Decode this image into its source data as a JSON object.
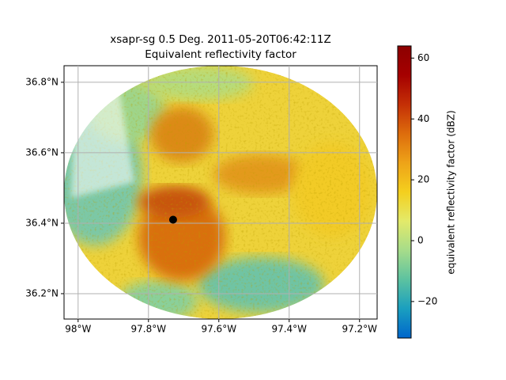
{
  "chart_data": {
    "type": "radar_ppi",
    "title": "xsapr-sg 0.5 Deg. 2011-05-20T06:42:11Z",
    "subtitle": "Equivalent reflectivity factor",
    "xlim": [
      -98.04,
      -97.15
    ],
    "ylim": [
      36.128,
      36.847
    ],
    "xticks": [
      {
        "value": -98,
        "label": "98°W"
      },
      {
        "value": -97.8,
        "label": "97.8°W"
      },
      {
        "value": -97.6,
        "label": "97.6°W"
      },
      {
        "value": -97.4,
        "label": "97.4°W"
      },
      {
        "value": -97.2,
        "label": "97.2°W"
      }
    ],
    "yticks": [
      {
        "value": 36.2,
        "label": "36.2°N"
      },
      {
        "value": 36.4,
        "label": "36.4°N"
      },
      {
        "value": 36.6,
        "label": "36.6°N"
      },
      {
        "value": 36.8,
        "label": "36.8°N"
      }
    ],
    "grid": true,
    "radar_site": {
      "x": -97.73,
      "y": 36.41,
      "color": "#000000"
    },
    "colorbar": {
      "label": "equivalent reflectivity factor (dBZ)",
      "lim": [
        -32,
        64
      ],
      "ticks": [
        {
          "value": -20,
          "label": "−20"
        },
        0,
        20,
        40,
        60
      ],
      "colormap": [
        "#0066cc",
        "#1a9fbf",
        "#5cc2a0",
        "#a6dc8a",
        "#e3ea6a",
        "#f4cf1e",
        "#eea318",
        "#dd6c0c",
        "#c42f06",
        "#a50000",
        "#8c0000"
      ]
    }
  }
}
